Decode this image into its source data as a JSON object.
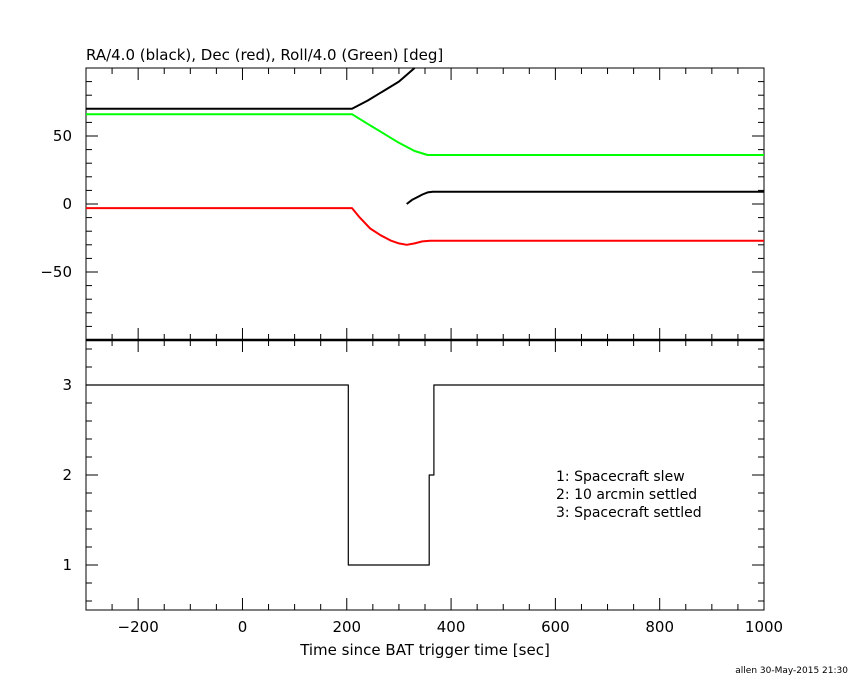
{
  "chart_data": [
    {
      "type": "line",
      "title": "RA/4.0 (black), Dec (red), Roll/4.0 (Green) [deg]",
      "xlim": [
        -300,
        1000
      ],
      "ylim": [
        -100,
        100
      ],
      "yticks": [
        -50,
        0,
        50
      ],
      "grid": false,
      "series": [
        {
          "color": "#000000",
          "segments": [
            [
              [
                -300,
                70
              ],
              [
                210,
                70
              ],
              [
                240,
                76
              ],
              [
                270,
                83
              ],
              [
                300,
                90
              ],
              [
                330,
                100
              ]
            ],
            [
              [
                315,
                0
              ],
              [
                325,
                3
              ],
              [
                335,
                5
              ],
              [
                345,
                7
              ],
              [
                355,
                8.5
              ],
              [
                365,
                9
              ],
              [
                1000,
                9
              ]
            ]
          ]
        },
        {
          "color": "#ff0000",
          "segments": [
            [
              [
                -300,
                -3
              ],
              [
                210,
                -3
              ],
              [
                225,
                -10
              ],
              [
                245,
                -18
              ],
              [
                265,
                -23
              ],
              [
                285,
                -27
              ],
              [
                300,
                -29
              ],
              [
                315,
                -30
              ],
              [
                330,
                -29
              ],
              [
                345,
                -27.5
              ],
              [
                360,
                -27
              ],
              [
                1000,
                -27
              ]
            ]
          ]
        },
        {
          "color": "#00ff00",
          "segments": [
            [
              [
                -300,
                66
              ],
              [
                210,
                66
              ],
              [
                240,
                59
              ],
              [
                270,
                52
              ],
              [
                300,
                45
              ],
              [
                330,
                39
              ],
              [
                355,
                36
              ],
              [
                365,
                36
              ],
              [
                1000,
                36
              ]
            ]
          ]
        }
      ]
    },
    {
      "type": "line",
      "xlabel": "Time since BAT trigger time [sec]",
      "xlim": [
        -300,
        1000
      ],
      "ylim": [
        0.5,
        3.5
      ],
      "xticks": [
        -200,
        0,
        200,
        400,
        600,
        800,
        1000
      ],
      "yticks": [
        1,
        2,
        3
      ],
      "grid": false,
      "series": [
        {
          "color": "#000000",
          "points": [
            [
              -300,
              3
            ],
            [
              203,
              3
            ],
            [
              203,
              1
            ],
            [
              358,
              1
            ],
            [
              358,
              2
            ],
            [
              367,
              2
            ],
            [
              367,
              3
            ],
            [
              1000,
              3
            ]
          ]
        }
      ],
      "legend": {
        "placement": "right",
        "entries": [
          "1: Spacecraft slew",
          "2: 10 arcmin settled",
          "3: Spacecraft settled"
        ]
      }
    }
  ],
  "footer": "allen 30-May-2015 21:30"
}
